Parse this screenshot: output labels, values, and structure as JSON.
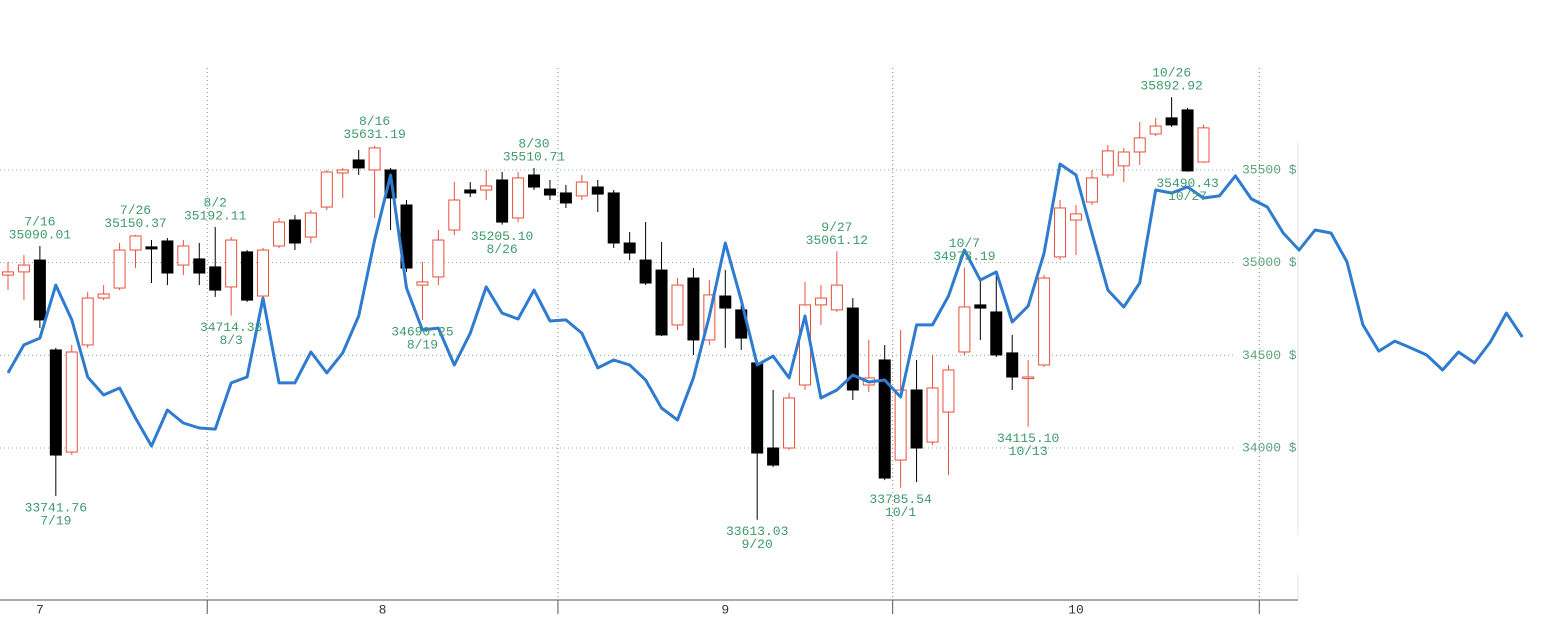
{
  "chart_data": {
    "type": "candlestick",
    "up_color": "#e8503c",
    "down_color": "#000000",
    "open": [
      34933,
      34950,
      35014,
      34529,
      33978,
      34556,
      34809,
      34863,
      35068,
      35085,
      35117,
      34987,
      35020,
      34977,
      34869,
      35058,
      34820,
      35090,
      35230,
      35138,
      35300,
      35484,
      35554,
      35500,
      35500,
      35311,
      34879,
      34923,
      35176,
      35392,
      35392,
      35446,
      35241,
      35473,
      35397,
      35376,
      35360,
      35408,
      35376,
      35106,
      35014,
      34960,
      34664,
      34917,
      34583,
      34820,
      34745,
      34459,
      34000,
      34000,
      34340,
      34772,
      34745,
      34755,
      34340,
      34475,
      33935,
      34313,
      34032,
      34194,
      34518,
      34772,
      34734,
      34513,
      34378,
      34448,
      35031,
      35230,
      35327,
      35473,
      35522,
      35597,
      35694,
      35781,
      35824,
      35543,
      null,
      null,
      null,
      null,
      null,
      null,
      null,
      null,
      null,
      null,
      null,
      null,
      null,
      null,
      null,
      null,
      null,
      null,
      null,
      null
    ],
    "high": [
      35004,
      35041,
      35090.01,
      34540,
      34556,
      34842,
      34879,
      35106,
      35150.37,
      35122,
      35133,
      35122,
      35106,
      35192.11,
      35138,
      35068,
      35079,
      35241,
      35257,
      35284,
      35500,
      35511,
      35608,
      35631.19,
      35511,
      35338,
      35004,
      35176,
      35435,
      35435,
      35500,
      35489,
      35489,
      35510.71,
      35446,
      35419,
      35473,
      35446,
      35392,
      35165,
      35219,
      35111,
      34917,
      34971,
      34906,
      34960,
      34772,
      34475,
      34313,
      34297,
      34896,
      34879,
      35061.12,
      34809,
      34583,
      34556,
      34637,
      34475,
      34502,
      34448,
      34973.19,
      34906,
      34950,
      34610,
      34475,
      34933,
      35338,
      35311,
      35500,
      35635,
      35619,
      35759,
      35781,
      35892.92,
      35835,
      35743,
      null,
      null,
      null,
      null,
      null,
      null,
      null,
      null,
      null,
      null,
      null,
      null,
      null,
      null,
      null,
      null,
      null,
      null,
      null,
      null
    ],
    "low": [
      34852,
      34798,
      34647,
      33741.76,
      33962,
      34540,
      34798,
      34852,
      34971,
      34890,
      34879,
      34933,
      34879,
      34815,
      34714.33,
      34788,
      34809,
      35079,
      35068,
      35106,
      35284,
      35349,
      35473,
      35241,
      35176,
      34950,
      34690.25,
      34879,
      35149,
      35354,
      35338,
      35205.1,
      35219,
      35392,
      35338,
      35295,
      35338,
      35273,
      35079,
      35014,
      34879,
      34604,
      34637,
      34502,
      34556,
      34540,
      34529,
      33613.03,
      33897,
      33989,
      34313,
      34664,
      34734,
      34259,
      34302,
      33827,
      33785.54,
      33816,
      34016,
      33854,
      34502,
      34583,
      34491,
      34313,
      34115.1,
      34437,
      35014,
      35041,
      35311,
      35457,
      35435,
      35527,
      35683,
      35732,
      35490.43,
      35538,
      null,
      null,
      null,
      null,
      null,
      null,
      null,
      null,
      null,
      null,
      null,
      null,
      null,
      null,
      null,
      null,
      null,
      null,
      null,
      null
    ],
    "close": [
      34950,
      34987,
      34691,
      33962,
      34518,
      34809,
      34831,
      35068,
      35144,
      35074,
      34944,
      35090,
      34944,
      34852,
      35122,
      34798,
      35068,
      35219,
      35106,
      35268,
      35489,
      35500,
      35511,
      35619,
      35349,
      34971,
      34896,
      35122,
      35338,
      35376,
      35414,
      35219,
      35457,
      35408,
      35365,
      35322,
      35435,
      35370,
      35106,
      35052,
      34890,
      34610,
      34879,
      34583,
      34826,
      34755,
      34593,
      33973,
      33908,
      34270,
      34772,
      34809,
      34879,
      34313,
      34378,
      33838,
      34313,
      34000,
      34324,
      34421,
      34761,
      34755,
      34502,
      34383,
      34383,
      34917,
      35295,
      35263,
      35457,
      35603,
      35597,
      35673,
      35737,
      35743,
      35495,
      35727,
      null,
      null,
      null,
      null,
      null,
      null,
      null,
      null,
      null,
      null,
      null,
      null,
      null,
      null,
      null,
      null,
      null,
      null,
      null,
      null
    ],
    "line": {
      "color": "#2e7bcf",
      "values": [
        34405,
        34556,
        34593,
        34879,
        34691,
        34383,
        34286,
        34324,
        34162,
        34011,
        34205,
        34135,
        34108,
        34102,
        34351,
        34383,
        34809,
        34351,
        34351,
        34518,
        34405,
        34513,
        34712,
        35122,
        35473,
        34863,
        34637,
        34647,
        34448,
        34620,
        34869,
        34728,
        34696,
        34852,
        34685,
        34691,
        34620,
        34432,
        34475,
        34448,
        34367,
        34216,
        34151,
        34378,
        34712,
        35106,
        34798,
        34448,
        34496,
        34378,
        34712,
        34270,
        34313,
        34394,
        34356,
        34367,
        34275,
        34664,
        34664,
        34820,
        35068,
        34906,
        34950,
        34680,
        34766,
        35052,
        35532,
        35473,
        35160,
        34852,
        34761,
        34890,
        35392,
        35376,
        35408,
        35349,
        35360,
        35468,
        35344,
        35300,
        35160,
        35068,
        35176,
        35160,
        35004,
        34664,
        34523,
        34577,
        34540,
        34502,
        34421,
        34518,
        34459,
        34572,
        34728,
        34599
      ]
    },
    "annotations": [
      {
        "date": "7/16",
        "value": 35090.01
      },
      {
        "date": "7/19",
        "value": 33741.76
      },
      {
        "date": "7/26",
        "value": 35150.37
      },
      {
        "date": "8/2",
        "value": 35192.11
      },
      {
        "date": "8/3",
        "value": 34714.33
      },
      {
        "date": "8/16",
        "value": 35631.19
      },
      {
        "date": "8/19",
        "value": 34690.25
      },
      {
        "date": "8/26",
        "value": 35205.1,
        "label": "35205.10"
      },
      {
        "date": "8/30",
        "value": 35510.71
      },
      {
        "date": "9/20",
        "value": 33613.03
      },
      {
        "date": "9/27",
        "value": 35061.12
      },
      {
        "date": "10/1",
        "value": 33785.54
      },
      {
        "date": "10/7",
        "value": 34973.19
      },
      {
        "date": "10/13",
        "value": 34115.1,
        "label": "34115.10"
      },
      {
        "date": "10/26",
        "value": 35892.92
      },
      {
        "date": "10/27",
        "value": 35490.43
      }
    ],
    "ylim": [
      33180,
      36417
    ],
    "yticks": [
      {
        "value": 34000,
        "label": "34000 $"
      },
      {
        "value": 34500,
        "label": "34500 $"
      },
      {
        "value": 35000,
        "label": "35000 $"
      },
      {
        "value": 35500,
        "label": "35500 $"
      }
    ],
    "xticks": [
      {
        "value": 2,
        "label": "7"
      },
      {
        "value": 23.5,
        "label": "8"
      },
      {
        "value": 45,
        "label": "9"
      },
      {
        "value": 67,
        "label": "10"
      }
    ],
    "xgrid": [
      12.5,
      34.5,
      55.5,
      78.5
    ],
    "grid": true
  }
}
